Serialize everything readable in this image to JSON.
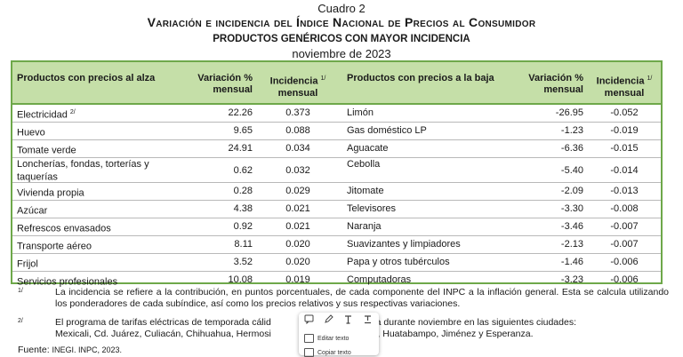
{
  "header": {
    "cuadro": "Cuadro 2",
    "title": "Variación e incidencia del Índice Nacional de Precios al Consumidor",
    "subtitle": "PRODUCTOS GENÉRICOS CON MAYOR INCIDENCIA",
    "period": "noviembre de 2023"
  },
  "table": {
    "columns": {
      "up_label": "Productos con precios al alza",
      "var_label": "Variación % mensual",
      "inc_label": "Incidencia",
      "inc_sub": "mensual",
      "inc_mark": "1/",
      "down_label": "Productos con precios a la baja",
      "var2_label": "Variación % mensual",
      "inc2_label": "Incidencia",
      "inc2_sub": "mensual",
      "inc2_mark": "1/"
    },
    "rows": [
      {
        "up": "Electricidad",
        "up_mark": "2/",
        "var": "22.26",
        "inc": "0.373",
        "down": "Limón",
        "var2": "-26.95",
        "inc2": "-0.052"
      },
      {
        "up": "Huevo",
        "up_mark": "",
        "var": "9.65",
        "inc": "0.088",
        "down": "Gas doméstico LP",
        "var2": "-1.23",
        "inc2": "-0.019"
      },
      {
        "up": "Tomate verde",
        "up_mark": "",
        "var": "24.91",
        "inc": "0.034",
        "down": "Aguacate",
        "var2": "-6.36",
        "inc2": "-0.015"
      },
      {
        "up": "Loncherías, fondas, torterías y taquerías",
        "up_mark": "",
        "var": "0.62",
        "inc": "0.032",
        "down": "Cebolla",
        "var2": "-5.40",
        "inc2": "-0.014"
      },
      {
        "up": "Vivienda propia",
        "up_mark": "",
        "var": "0.28",
        "inc": "0.029",
        "down": "Jitomate",
        "var2": "-2.09",
        "inc2": "-0.013"
      },
      {
        "up": "Azúcar",
        "up_mark": "",
        "var": "4.38",
        "inc": "0.021",
        "down": "Televisores",
        "var2": "-3.30",
        "inc2": "-0.008"
      },
      {
        "up": "Refrescos envasados",
        "up_mark": "",
        "var": "0.92",
        "inc": "0.021",
        "down": "Naranja",
        "var2": "-3.46",
        "inc2": "-0.007"
      },
      {
        "up": "Transporte aéreo",
        "up_mark": "",
        "var": "8.11",
        "inc": "0.020",
        "down": "Suavizantes y limpiadores",
        "var2": "-2.13",
        "inc2": "-0.007"
      },
      {
        "up": "Frijol",
        "up_mark": "",
        "var": "3.52",
        "inc": "0.020",
        "down": "Papa y otros tubérculos",
        "var2": "-1.46",
        "inc2": "-0.006"
      },
      {
        "up": "Servicios profesionales",
        "up_mark": "",
        "var": "10.08",
        "inc": "0.019",
        "down": "Computadoras",
        "var2": "-3.23",
        "inc2": "-0.006"
      }
    ]
  },
  "notes": [
    {
      "mark": "1/",
      "text": "La incidencia se refiere a la contribución, en puntos porcentuales, de cada componente del INPC a la inflación general. Esta se calcula utilizando los ponderadores de cada subíndice, así como los precios relativos y sus respectivas variaciones."
    },
    {
      "mark": "2/",
      "text_line1": "El programa de tarifas eléctricas de temporada cálid",
      "text_line1_tail": "do de vigencia durante noviembre en las siguientes ciudades:",
      "text_line2": "Mexicali, Cd. Juárez, Culiacán, Chihuahua, Hermosi",
      "text_line2_tail": "olima, La Paz, Huatabampo, Jiménez y Esperanza."
    }
  ],
  "source": {
    "label": "Fuente:",
    "value": "INEGI. INPC, 2023."
  },
  "popup": {
    "item1": "Editar texto",
    "item2": "Copiar texto"
  }
}
